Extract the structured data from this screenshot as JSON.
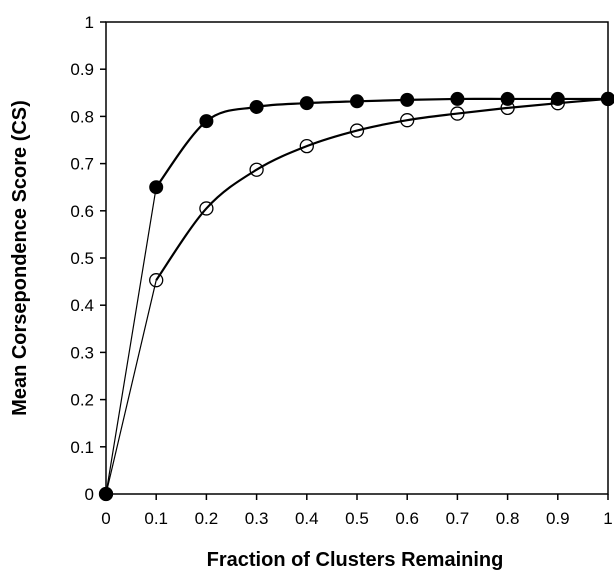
{
  "chart_data": {
    "type": "scatter",
    "title": "",
    "xlabel": "Fraction of Clusters Remaining",
    "ylabel": "Mean Corsepondence Score (CS)",
    "xlim": [
      0,
      1
    ],
    "ylim": [
      0,
      1
    ],
    "x_ticks": [
      "0",
      "0.1",
      "0.2",
      "0.3",
      "0.4",
      "0.5",
      "0.6",
      "0.7",
      "0.8",
      "0.9",
      "1"
    ],
    "y_ticks": [
      "0",
      "0.1",
      "0.2",
      "0.3",
      "0.4",
      "0.5",
      "0.6",
      "0.7",
      "0.8",
      "0.9",
      "1"
    ],
    "grid": false,
    "legend": "none",
    "series": [
      {
        "marker": "filled-circle",
        "color": "#000000",
        "x": [
          0,
          0.1,
          0.2,
          0.3,
          0.4,
          0.5,
          0.6,
          0.7,
          0.8,
          0.9,
          1.0
        ],
        "y": [
          0,
          0.65,
          0.79,
          0.82,
          0.828,
          0.832,
          0.835,
          0.837,
          0.837,
          0.837,
          0.837
        ]
      },
      {
        "marker": "open-circle",
        "color": "#000000",
        "x": [
          0,
          0.1,
          0.2,
          0.3,
          0.4,
          0.5,
          0.6,
          0.7,
          0.8,
          0.9,
          1.0
        ],
        "y": [
          0,
          0.453,
          0.605,
          0.687,
          0.737,
          0.77,
          0.792,
          0.806,
          0.818,
          0.828,
          0.837
        ]
      }
    ]
  }
}
